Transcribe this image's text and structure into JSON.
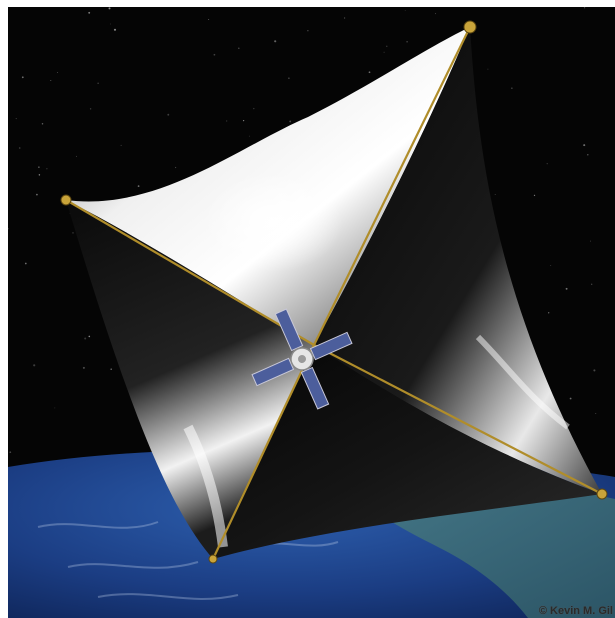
{
  "image": {
    "subject": "solar-sail",
    "colors": {
      "space": "#050505",
      "earth_ocean": "#1b3d83",
      "earth_land": "#3d6f79",
      "sail_light": "#f4f4f4",
      "sail_dark": "#0b0b0b",
      "boom": "#b08d2a",
      "solar_panel": "#4c5e9c"
    }
  },
  "credit": {
    "text": "© Kevin M. Gil"
  }
}
